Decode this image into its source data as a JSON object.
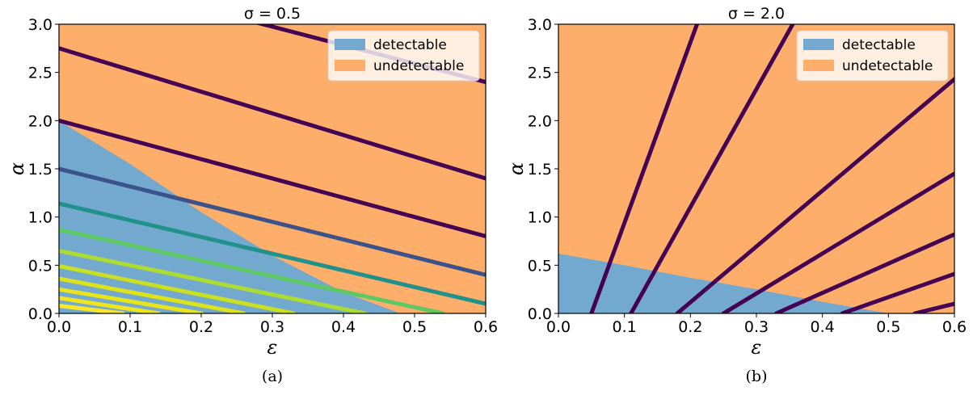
{
  "chart_data": [
    {
      "type": "area",
      "title": "σ = 0.5",
      "caption": "(a)",
      "xlabel": "ε",
      "ylabel": "α",
      "xlim": [
        0,
        0.6
      ],
      "ylim": [
        0,
        3.0
      ],
      "xticks": [
        "0.0",
        "0.1",
        "0.2",
        "0.3",
        "0.4",
        "0.5",
        "0.6"
      ],
      "yticks": [
        "0.0",
        "0.5",
        "1.0",
        "1.5",
        "2.0",
        "2.5",
        "3.0"
      ],
      "legend": {
        "position": "upper right",
        "entries": [
          {
            "label": "detectable",
            "color": "#74a9cf"
          },
          {
            "label": "undetectable",
            "color": "#fdae6b"
          }
        ]
      },
      "regions": {
        "detectable_boundary": {
          "x": [
            0.0,
            0.1,
            0.2,
            0.3,
            0.4,
            0.48
          ],
          "y": [
            2.0,
            1.55,
            1.05,
            0.6,
            0.22,
            0.0
          ]
        }
      },
      "series": [
        {
          "x": [
            0,
            0.6
          ],
          "y": [
            3.55,
            2.4
          ],
          "color": "#440154"
        },
        {
          "x": [
            0,
            0.6
          ],
          "y": [
            2.75,
            1.4
          ],
          "color": "#440154"
        },
        {
          "x": [
            0,
            0.6
          ],
          "y": [
            2.0,
            0.8
          ],
          "color": "#440154"
        },
        {
          "x": [
            0,
            0.6
          ],
          "y": [
            1.5,
            0.4
          ],
          "color": "#3b528b"
        },
        {
          "x": [
            0,
            0.6
          ],
          "y": [
            1.14,
            0.1
          ],
          "color": "#21918c"
        },
        {
          "x": [
            0,
            0.54
          ],
          "y": [
            0.87,
            0.0
          ],
          "color": "#5ec962"
        },
        {
          "x": [
            0,
            0.43
          ],
          "y": [
            0.65,
            0.0
          ],
          "color": "#addc30"
        },
        {
          "x": [
            0,
            0.33
          ],
          "y": [
            0.49,
            0.0
          ],
          "color": "#c8e020"
        },
        {
          "x": [
            0,
            0.26
          ],
          "y": [
            0.36,
            0.0
          ],
          "color": "#dde318"
        },
        {
          "x": [
            0,
            0.2
          ],
          "y": [
            0.25,
            0.0
          ],
          "color": "#e8e419"
        },
        {
          "x": [
            0,
            0.14
          ],
          "y": [
            0.16,
            0.0
          ],
          "color": "#f0e51c"
        },
        {
          "x": [
            0,
            0.09
          ],
          "y": [
            0.08,
            0.0
          ],
          "color": "#fde725"
        }
      ]
    },
    {
      "type": "area",
      "title": "σ = 2.0",
      "caption": "(b)",
      "xlabel": "ε",
      "ylabel": "α",
      "xlim": [
        0,
        0.6
      ],
      "ylim": [
        0,
        3.0
      ],
      "xticks": [
        "0.0",
        "0.1",
        "0.2",
        "0.3",
        "0.4",
        "0.5",
        "0.6"
      ],
      "yticks": [
        "0.0",
        "0.5",
        "1.0",
        "1.5",
        "2.0",
        "2.5",
        "3.0"
      ],
      "legend": {
        "position": "upper right",
        "entries": [
          {
            "label": "detectable",
            "color": "#74a9cf"
          },
          {
            "label": "undetectable",
            "color": "#fdae6b"
          }
        ]
      },
      "regions": {
        "detectable_boundary": {
          "x": [
            0.0,
            0.1,
            0.2,
            0.3,
            0.4,
            0.5
          ],
          "y": [
            0.62,
            0.5,
            0.37,
            0.25,
            0.12,
            0.0
          ]
        }
      },
      "series": [
        {
          "x": [
            0.05,
            0.21
          ],
          "y": [
            0.0,
            3.0
          ],
          "color": "#440154"
        },
        {
          "x": [
            0.11,
            0.355
          ],
          "y": [
            0.0,
            3.0
          ],
          "color": "#440154"
        },
        {
          "x": [
            0.18,
            0.6
          ],
          "y": [
            0.0,
            2.43
          ],
          "color": "#440154"
        },
        {
          "x": [
            0.25,
            0.6
          ],
          "y": [
            0.0,
            1.45
          ],
          "color": "#440154"
        },
        {
          "x": [
            0.33,
            0.6
          ],
          "y": [
            0.0,
            0.82
          ],
          "color": "#440154"
        },
        {
          "x": [
            0.43,
            0.6
          ],
          "y": [
            0.0,
            0.41
          ],
          "color": "#440154"
        },
        {
          "x": [
            0.54,
            0.6
          ],
          "y": [
            0.0,
            0.1
          ],
          "color": "#440154"
        }
      ]
    }
  ]
}
